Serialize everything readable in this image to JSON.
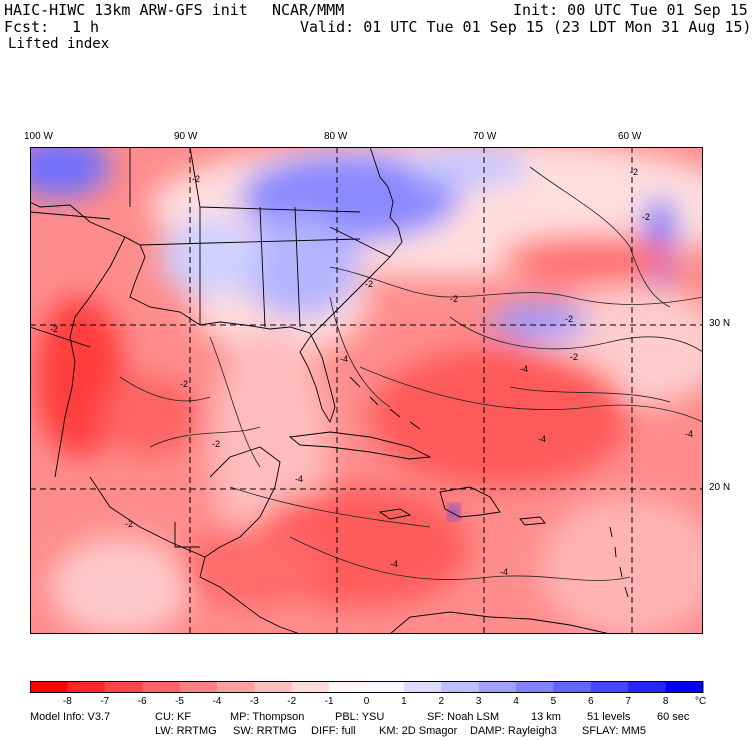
{
  "header": {
    "model_title": "HAIC-HIWC 13km ARW-GFS init",
    "center": "NCAR/MMM",
    "init": "Init: 00 UTC Tue 01 Sep 15",
    "fcst_label": "Fcst:",
    "fcst_value": "1 h",
    "valid": "Valid: 01 UTC Tue 01 Sep 15 (23 LDT Mon 31 Aug 15)",
    "field": "Lifted index"
  },
  "map": {
    "lon_labels": [
      "100 W",
      "90 W",
      "80 W",
      "70 W",
      "60 W"
    ],
    "lat_labels": [
      "30 N",
      "20 N"
    ],
    "contour_labels": [
      "-2",
      "-4"
    ],
    "colors": {
      "cold_strong": "#ff0000",
      "neutral": "#ffffff",
      "warm_strong": "#0000ff",
      "land": "#000000"
    }
  },
  "colorbar": {
    "ticks": [
      "-8",
      "-7",
      "-6",
      "-5",
      "-4",
      "-3",
      "-2",
      "-1",
      "0",
      "1",
      "2",
      "3",
      "4",
      "5",
      "6",
      "7",
      "8"
    ],
    "unit": "°C",
    "colors": [
      "#ff0000",
      "#ff2626",
      "#ff4646",
      "#ff6464",
      "#ff8282",
      "#ffa0a0",
      "#ffbebe",
      "#ffdcdc",
      "#fff6f6",
      "#f6f6ff",
      "#dcdcff",
      "#bebeff",
      "#a0a0ff",
      "#8282ff",
      "#6464ff",
      "#4646ff",
      "#2626ff",
      "#0000ff"
    ]
  },
  "footer": {
    "line1": [
      {
        "k": "model",
        "t": "Model Info: V3.7"
      },
      {
        "k": "cu",
        "t": "CU: KF"
      },
      {
        "k": "mp",
        "t": "MP: Thompson"
      },
      {
        "k": "pbl",
        "t": "PBL: YSU"
      },
      {
        "k": "sf",
        "t": "SF: Noah LSM"
      },
      {
        "k": "res",
        "t": "13 km"
      },
      {
        "k": "levels",
        "t": "51 levels"
      },
      {
        "k": "dt",
        "t": "60 sec"
      }
    ],
    "line2": [
      {
        "k": "lw",
        "t": "LW: RRTMG"
      },
      {
        "k": "sw",
        "t": "SW: RRTMG"
      },
      {
        "k": "diff",
        "t": "DIFF: full"
      },
      {
        "k": "km",
        "t": "KM: 2D Smagor"
      },
      {
        "k": "damp",
        "t": "DAMP: Rayleigh3"
      },
      {
        "k": "sflay",
        "t": "SFLAY: MM5"
      }
    ]
  }
}
